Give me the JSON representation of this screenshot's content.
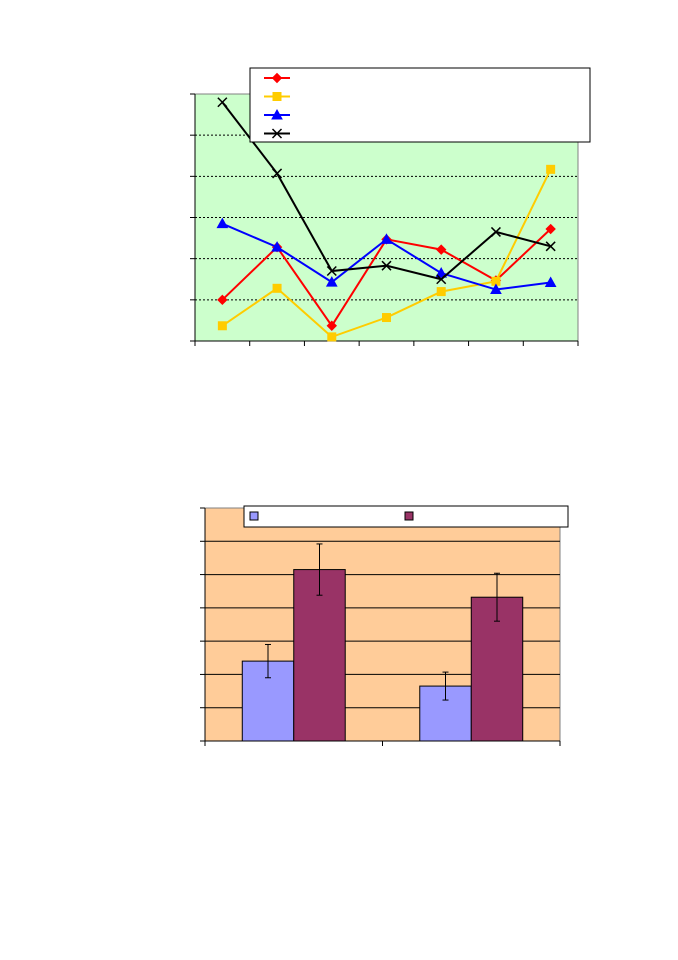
{
  "chart_data": [
    {
      "type": "line",
      "title": "",
      "xlabel": "",
      "ylabel": "",
      "x": [
        1,
        2,
        3,
        4,
        5,
        6,
        7
      ],
      "ylim": [
        0,
        6
      ],
      "grid": true,
      "background": "#ccffcc",
      "legend_position": "top-right",
      "series": [
        {
          "color": "#ff0000",
          "marker": "diamond",
          "values": [
            1.0,
            2.28,
            0.37,
            2.47,
            2.22,
            1.47,
            2.72
          ]
        },
        {
          "color": "#ffcc00",
          "marker": "square",
          "values": [
            0.37,
            1.28,
            0.1,
            0.57,
            1.2,
            1.45,
            4.17
          ]
        },
        {
          "color": "#0000ff",
          "marker": "triangle",
          "values": [
            2.85,
            2.28,
            1.43,
            2.47,
            1.65,
            1.25,
            1.42
          ]
        },
        {
          "color": "#000000",
          "marker": "x",
          "values": [
            5.8,
            4.07,
            1.7,
            1.83,
            1.5,
            2.65,
            2.3
          ]
        }
      ]
    },
    {
      "type": "bar",
      "title": "",
      "xlabel": "",
      "ylabel": "",
      "categories": [
        "",
        ""
      ],
      "ylim": [
        0,
        7
      ],
      "grid": true,
      "background": "#ffcc99",
      "legend_position": "top",
      "series": [
        {
          "color": "#9999ff",
          "values": [
            2.4,
            1.65
          ],
          "errors": [
            0.5,
            0.42
          ]
        },
        {
          "color": "#993366",
          "values": [
            5.15,
            4.32
          ],
          "errors": [
            0.77,
            0.72
          ]
        }
      ]
    }
  ]
}
